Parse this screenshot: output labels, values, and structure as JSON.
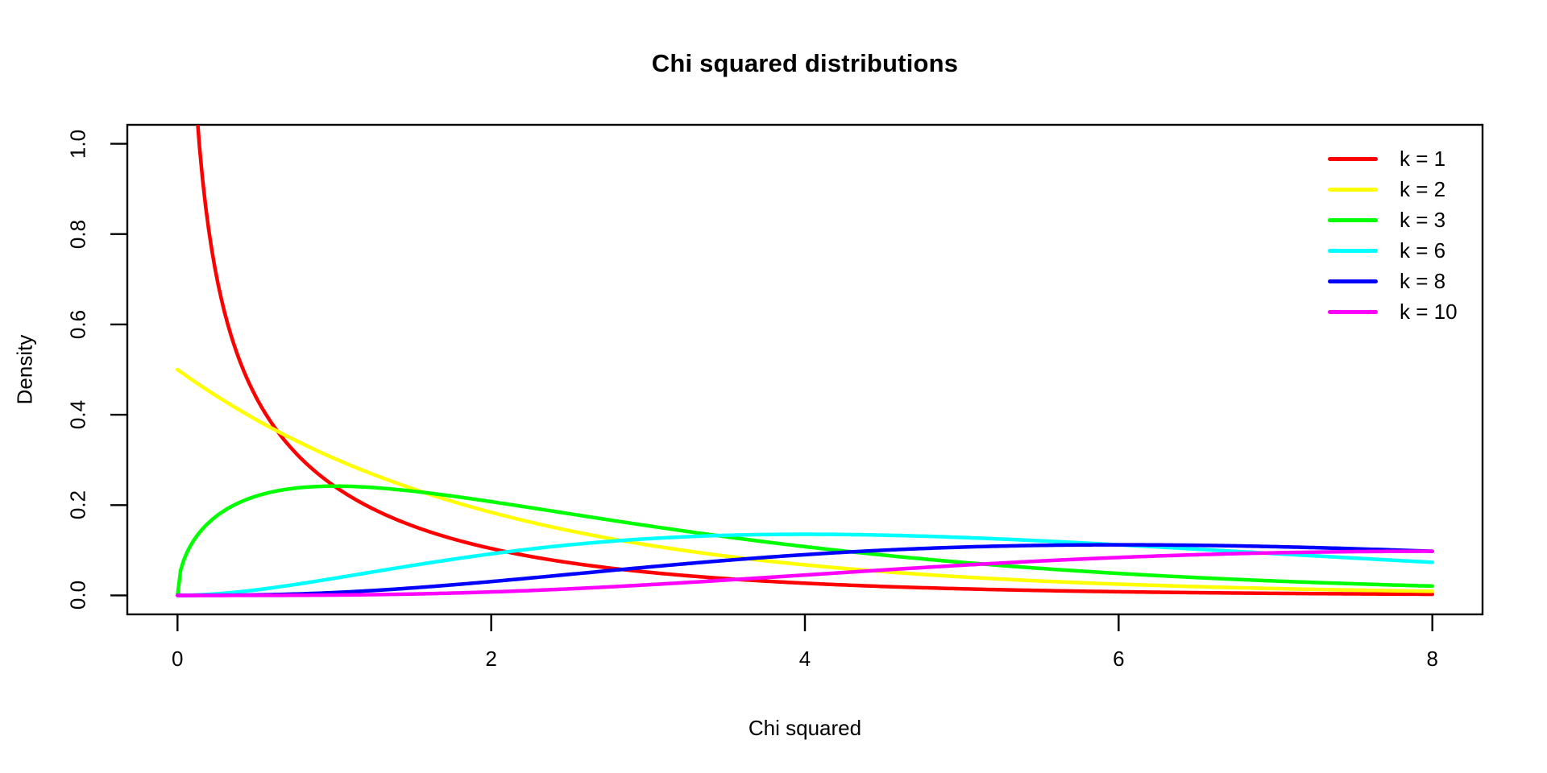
{
  "figure": {
    "background": "#ffffff",
    "axis_color": "#000000",
    "text_color": "#000000"
  },
  "chart_data": {
    "type": "line",
    "title": "Chi squared distributions",
    "xlabel": "Chi squared",
    "ylabel": "Density",
    "xlim": [
      0,
      8
    ],
    "ylim": [
      0,
      1
    ],
    "usr": {
      "x0": -0.32,
      "x1": 8.32,
      "y0": -0.042,
      "y1": 1.042
    },
    "x_ticks": [
      0,
      2,
      4,
      6,
      8
    ],
    "x_tick_labels": [
      "0",
      "2",
      "4",
      "6",
      "8"
    ],
    "y_ticks": [
      0.0,
      0.2,
      0.4,
      0.6,
      0.8,
      1.0
    ],
    "y_tick_labels": [
      "0.0",
      "0.2",
      "0.4",
      "0.6",
      "0.8",
      "1.0"
    ],
    "grid": false,
    "legend_position": "top-right",
    "legend_frame": false,
    "curve_formula": "chi-squared pdf: f(x;k) = x^(k/2-1) * exp(-x/2) / (2^(k/2) * Gamma(k/2))",
    "line_width": 4.5,
    "series": [
      {
        "label": "k = 1",
        "k": 1,
        "color": "#FF0000",
        "sample_x": [
          0,
          1,
          2,
          3,
          4,
          5,
          6,
          7,
          8
        ],
        "sample_y": [
          null,
          0.242,
          0.1038,
          0.0514,
          0.027,
          0.0146,
          0.0081,
          0.0046,
          0.0026
        ]
      },
      {
        "label": "k = 2",
        "k": 2,
        "color": "#FFFF00",
        "sample_x": [
          0,
          1,
          2,
          3,
          4,
          5,
          6,
          7,
          8
        ],
        "sample_y": [
          0.5,
          0.3033,
          0.1839,
          0.1116,
          0.0677,
          0.041,
          0.0249,
          0.0151,
          0.0092
        ]
      },
      {
        "label": "k = 3",
        "k": 3,
        "color": "#00FF00",
        "sample_x": [
          0,
          1,
          2,
          3,
          4,
          5,
          6,
          7,
          8
        ],
        "sample_y": [
          0,
          0.242,
          0.2076,
          0.1542,
          0.108,
          0.0732,
          0.0487,
          0.0319,
          0.0207
        ]
      },
      {
        "label": "k = 6",
        "k": 6,
        "color": "#00FFFF",
        "sample_x": [
          0,
          1,
          2,
          3,
          4,
          5,
          6,
          7,
          8
        ],
        "sample_y": [
          0,
          0.0379,
          0.092,
          0.1255,
          0.1353,
          0.1283,
          0.1121,
          0.0925,
          0.0733
        ]
      },
      {
        "label": "k = 8",
        "k": 8,
        "color": "#0000FF",
        "sample_x": [
          0,
          1,
          2,
          3,
          4,
          5,
          6,
          7,
          8
        ],
        "sample_y": [
          0,
          0.0063,
          0.0307,
          0.0627,
          0.0902,
          0.1069,
          0.1121,
          0.1079,
          0.0977
        ]
      },
      {
        "label": "k = 10",
        "k": 10,
        "color": "#FF00FF",
        "sample_x": [
          0,
          1,
          2,
          3,
          4,
          5,
          6,
          7,
          8
        ],
        "sample_y": [
          0,
          0.0008,
          0.0077,
          0.0235,
          0.0451,
          0.0668,
          0.084,
          0.0944,
          0.0977
        ]
      }
    ]
  }
}
